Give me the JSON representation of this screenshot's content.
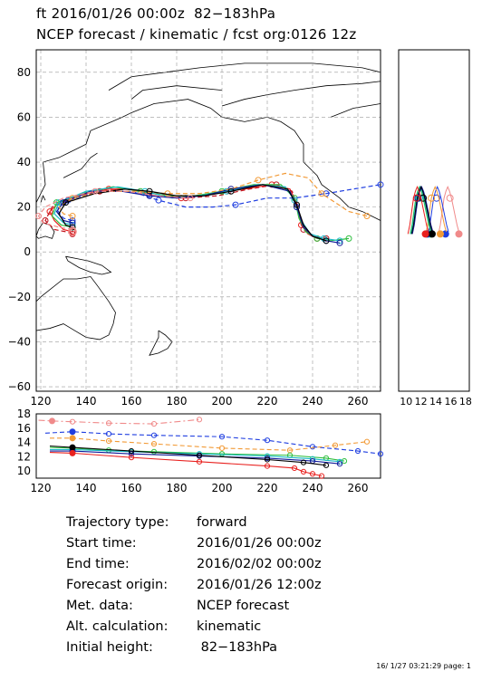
{
  "header": {
    "line1": "ft 2016/01/26 00:00z  82−183hPa",
    "line2": "NCEP forecast / kinematic / fcst org:0126 12z"
  },
  "info": [
    {
      "label": "Trajectory type:",
      "value": "forward"
    },
    {
      "label": "Start time:",
      "value": "2016/01/26 00:00z"
    },
    {
      "label": "End time:",
      "value": "2016/02/02 00:00z"
    },
    {
      "label": "Forecast origin:",
      "value": "2016/01/26 12:00z"
    },
    {
      "label": "Met. data:",
      "value": "NCEP forecast"
    },
    {
      "label": "Alt. calculation:",
      "value": "kinematic"
    },
    {
      "label": "Initial height:",
      "value": " 82−183hPa"
    }
  ],
  "footer": "16/ 1/27 03:21:29 page: 1",
  "colors": {
    "red": "#e8201e",
    "darkred": "#c0121c",
    "pink": "#f08a8a",
    "orange": "#f29a36",
    "green": "#2fbf3f",
    "cyan": "#19b8c8",
    "blue": "#1f3ee0",
    "navy": "#121a9a",
    "black": "#000000",
    "purple": "#7a2bd0",
    "grid": "#9a9a9a"
  },
  "chart_data": [
    {
      "type": "line",
      "panel": "map",
      "xlim": [
        118,
        270
      ],
      "ylim": [
        -62,
        90
      ],
      "xticks": [
        120,
        140,
        160,
        180,
        200,
        220,
        240,
        260
      ],
      "yticks": [
        -60,
        -40,
        -20,
        0,
        20,
        40,
        60,
        80
      ],
      "xlabel": "",
      "ylabel": "",
      "series": [
        {
          "color_key": "red",
          "style": "solid",
          "points": [
            [
              134,
              9
            ],
            [
              130,
              10
            ],
            [
              126,
              14
            ],
            [
              124,
              18
            ],
            [
              128,
              22
            ],
            [
              140,
              26
            ],
            [
              150,
              28
            ],
            [
              160,
              28
            ],
            [
              170,
              25
            ],
            [
              182,
              24
            ],
            [
              195,
              26
            ],
            [
              210,
              28
            ],
            [
              222,
              30
            ],
            [
              230,
              28
            ],
            [
              233,
              22
            ],
            [
              235,
              12
            ],
            [
              238,
              8
            ],
            [
              242,
              6
            ]
          ]
        },
        {
          "color_key": "darkred",
          "style": "dash",
          "points": [
            [
              134,
              8
            ],
            [
              131,
              9
            ],
            [
              126,
              10
            ],
            [
              122,
              14
            ],
            [
              125,
              20
            ],
            [
              134,
              24
            ],
            [
              146,
              27
            ],
            [
              158,
              28
            ],
            [
              170,
              26
            ],
            [
              184,
              24
            ],
            [
              198,
              25
            ],
            [
              212,
              28
            ],
            [
              224,
              30
            ],
            [
              231,
              27
            ],
            [
              234,
              18
            ],
            [
              236,
              10
            ],
            [
              240,
              7
            ],
            [
              246,
              6
            ]
          ]
        },
        {
          "color_key": "green",
          "style": "solid",
          "points": [
            [
              134,
              11
            ],
            [
              129,
              12
            ],
            [
              125,
              16
            ],
            [
              127,
              22
            ],
            [
              138,
              26
            ],
            [
              152,
              29
            ],
            [
              164,
              27
            ],
            [
              176,
              25
            ],
            [
              188,
              25
            ],
            [
              200,
              27
            ],
            [
              214,
              30
            ],
            [
              226,
              30
            ],
            [
              232,
              24
            ],
            [
              234,
              15
            ],
            [
              237,
              9
            ],
            [
              242,
              6
            ],
            [
              248,
              5
            ],
            [
              256,
              6
            ]
          ]
        },
        {
          "color_key": "cyan",
          "style": "solid",
          "points": [
            [
              134,
              12
            ],
            [
              130,
              13
            ],
            [
              126,
              17
            ],
            [
              128,
              22
            ],
            [
              140,
              27
            ],
            [
              154,
              29
            ],
            [
              166,
              27
            ],
            [
              178,
              24
            ],
            [
              190,
              25
            ],
            [
              202,
              27
            ],
            [
              216,
              30
            ],
            [
              228,
              29
            ],
            [
              232,
              23
            ],
            [
              235,
              14
            ],
            [
              239,
              8
            ],
            [
              245,
              6
            ],
            [
              252,
              5
            ]
          ]
        },
        {
          "color_key": "blue",
          "style": "dash",
          "points": [
            [
              134,
              14
            ],
            [
              130,
              15
            ],
            [
              127,
              19
            ],
            [
              132,
              23
            ],
            [
              146,
              27
            ],
            [
              160,
              27
            ],
            [
              172,
              23
            ],
            [
              184,
              20
            ],
            [
              196,
              20
            ],
            [
              206,
              21
            ],
            [
              220,
              24
            ],
            [
              232,
              24
            ],
            [
              246,
              26
            ],
            [
              258,
              28
            ],
            [
              270,
              30
            ]
          ]
        },
        {
          "color_key": "navy",
          "style": "solid",
          "points": [
            [
              134,
              13
            ],
            [
              130,
              14
            ],
            [
              127,
              18
            ],
            [
              130,
              22
            ],
            [
              142,
              27
            ],
            [
              156,
              27
            ],
            [
              168,
              25
            ],
            [
              180,
              24
            ],
            [
              192,
              25
            ],
            [
              204,
              28
            ],
            [
              218,
              30
            ],
            [
              230,
              27
            ],
            [
              233,
              20
            ],
            [
              236,
              11
            ],
            [
              240,
              7
            ],
            [
              246,
              5
            ],
            [
              252,
              4
            ]
          ]
        },
        {
          "color_key": "orange",
          "style": "dash",
          "points": [
            [
              134,
              16
            ],
            [
              130,
              17
            ],
            [
              128,
              20
            ],
            [
              134,
              24
            ],
            [
              148,
              27
            ],
            [
              162,
              27
            ],
            [
              176,
              26
            ],
            [
              190,
              26
            ],
            [
              204,
              28
            ],
            [
              216,
              32
            ],
            [
              228,
              35
            ],
            [
              238,
              33
            ],
            [
              244,
              26
            ],
            [
              250,
              22
            ],
            [
              256,
              18
            ],
            [
              264,
              16
            ]
          ]
        },
        {
          "color_key": "black",
          "style": "solid",
          "points": [
            [
              134,
              11
            ],
            [
              131,
              12
            ],
            [
              128,
              17
            ],
            [
              131,
              22
            ],
            [
              144,
              26
            ],
            [
              157,
              28
            ],
            [
              168,
              27
            ],
            [
              180,
              25
            ],
            [
              192,
              25
            ],
            [
              204,
              27
            ],
            [
              218,
              30
            ],
            [
              229,
              28
            ],
            [
              233,
              21
            ],
            [
              236,
              12
            ],
            [
              240,
              7
            ],
            [
              246,
              5
            ]
          ]
        },
        {
          "color_key": "pink",
          "style": "dash",
          "points": [
            [
              134,
              10
            ],
            [
              128,
              11
            ],
            [
              121,
              13
            ],
            [
              119,
              16
            ],
            [
              122,
              20
            ],
            [
              130,
              24
            ],
            [
              144,
              27
            ],
            [
              158,
              27
            ],
            [
              172,
              25
            ],
            [
              186,
              24
            ]
          ]
        }
      ]
    },
    {
      "type": "line",
      "panel": "height",
      "xlim": [
        118,
        270
      ],
      "ylim": [
        9,
        18
      ],
      "xticks": [
        120,
        140,
        160,
        180,
        200,
        220,
        240,
        260
      ],
      "yticks": [
        10,
        12,
        14,
        16,
        18
      ],
      "series": [
        {
          "color_key": "pink",
          "style": "dashdot",
          "points": [
            [
              119,
              17.1
            ],
            [
              125,
              17.0
            ],
            [
              134,
              16.9
            ],
            [
              150,
              16.7
            ],
            [
              170,
              16.6
            ],
            [
              190,
              17.2
            ]
          ]
        },
        {
          "color_key": "blue",
          "style": "dash",
          "points": [
            [
              122,
              15.3
            ],
            [
              134,
              15.5
            ],
            [
              150,
              15.2
            ],
            [
              170,
              15.0
            ],
            [
              200,
              14.8
            ],
            [
              220,
              14.3
            ],
            [
              240,
              13.4
            ],
            [
              260,
              12.8
            ],
            [
              270,
              12.4
            ]
          ]
        },
        {
          "color_key": "orange",
          "style": "dash",
          "points": [
            [
              124,
              14.6
            ],
            [
              134,
              14.6
            ],
            [
              150,
              14.2
            ],
            [
              170,
              13.8
            ],
            [
              200,
              13.2
            ],
            [
              230,
              12.9
            ],
            [
              250,
              13.6
            ],
            [
              264,
              14.1
            ]
          ]
        },
        {
          "color_key": "green",
          "style": "solid",
          "points": [
            [
              124,
              13.3
            ],
            [
              134,
              13.2
            ],
            [
              150,
              12.9
            ],
            [
              170,
              12.7
            ],
            [
              200,
              12.4
            ],
            [
              230,
              12.2
            ],
            [
              246,
              11.8
            ],
            [
              254,
              11.4
            ]
          ]
        },
        {
          "color_key": "cyan",
          "style": "solid",
          "points": [
            [
              124,
              13.0
            ],
            [
              134,
              13.0
            ],
            [
              160,
              12.7
            ],
            [
              190,
              12.4
            ],
            [
              220,
              12.1
            ],
            [
              240,
              11.7
            ],
            [
              252,
              11.3
            ]
          ]
        },
        {
          "color_key": "navy",
          "style": "solid",
          "points": [
            [
              124,
              12.8
            ],
            [
              134,
              12.8
            ],
            [
              160,
              12.4
            ],
            [
              190,
              12.1
            ],
            [
              220,
              11.8
            ],
            [
              240,
              11.4
            ],
            [
              252,
              11.0
            ]
          ]
        },
        {
          "color_key": "black",
          "style": "solid",
          "points": [
            [
              124,
              13.5
            ],
            [
              134,
              13.3
            ],
            [
              160,
              12.8
            ],
            [
              190,
              12.2
            ],
            [
              220,
              11.6
            ],
            [
              236,
              11.2
            ],
            [
              246,
              10.8
            ]
          ]
        },
        {
          "color_key": "red",
          "style": "solid",
          "points": [
            [
              124,
              12.6
            ],
            [
              134,
              12.5
            ],
            [
              160,
              11.9
            ],
            [
              190,
              11.3
            ],
            [
              220,
              10.7
            ],
            [
              232,
              10.4
            ],
            [
              236,
              9.9
            ],
            [
              240,
              9.6
            ],
            [
              244,
              9.3
            ]
          ]
        }
      ]
    },
    {
      "type": "scatter",
      "panel": "side",
      "xlim": [
        9,
        18.5
      ],
      "ylim": [
        -62,
        90
      ],
      "xticks": [
        10,
        12,
        14,
        16,
        18
      ],
      "xtick_labels": [
        "10",
        "12",
        "14",
        "16",
        "18"
      ]
    }
  ]
}
